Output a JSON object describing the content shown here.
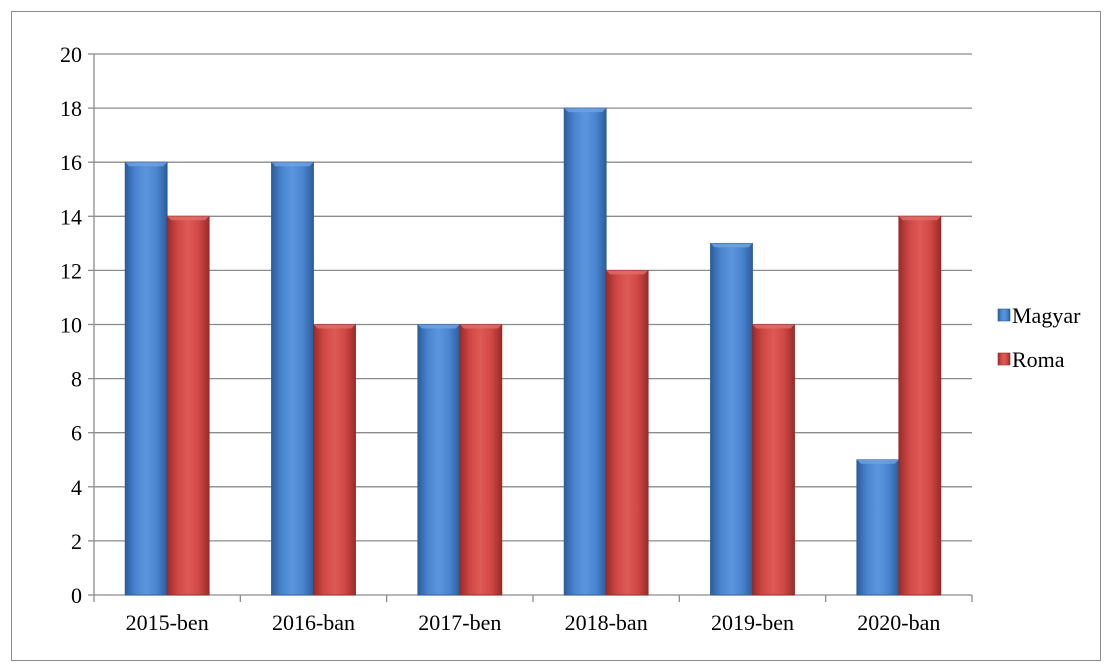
{
  "chart_data": {
    "type": "bar",
    "title": "",
    "xlabel": "",
    "ylabel": "",
    "categories": [
      "2015-ben",
      "2016-ban",
      "2017-ben",
      "2018-ban",
      "2019-ben",
      "2020-ban"
    ],
    "series": [
      {
        "name": "Magyar",
        "values": [
          16,
          16,
          10,
          18,
          13,
          5
        ],
        "color": "#4f81bd"
      },
      {
        "name": "Roma",
        "values": [
          14,
          10,
          10,
          12,
          10,
          14
        ],
        "color": "#c0504d"
      }
    ],
    "ylim": [
      0,
      20
    ],
    "yticks": [
      0,
      2,
      4,
      6,
      8,
      10,
      12,
      14,
      16,
      18,
      20
    ],
    "grid": true,
    "legend_position": "right"
  }
}
